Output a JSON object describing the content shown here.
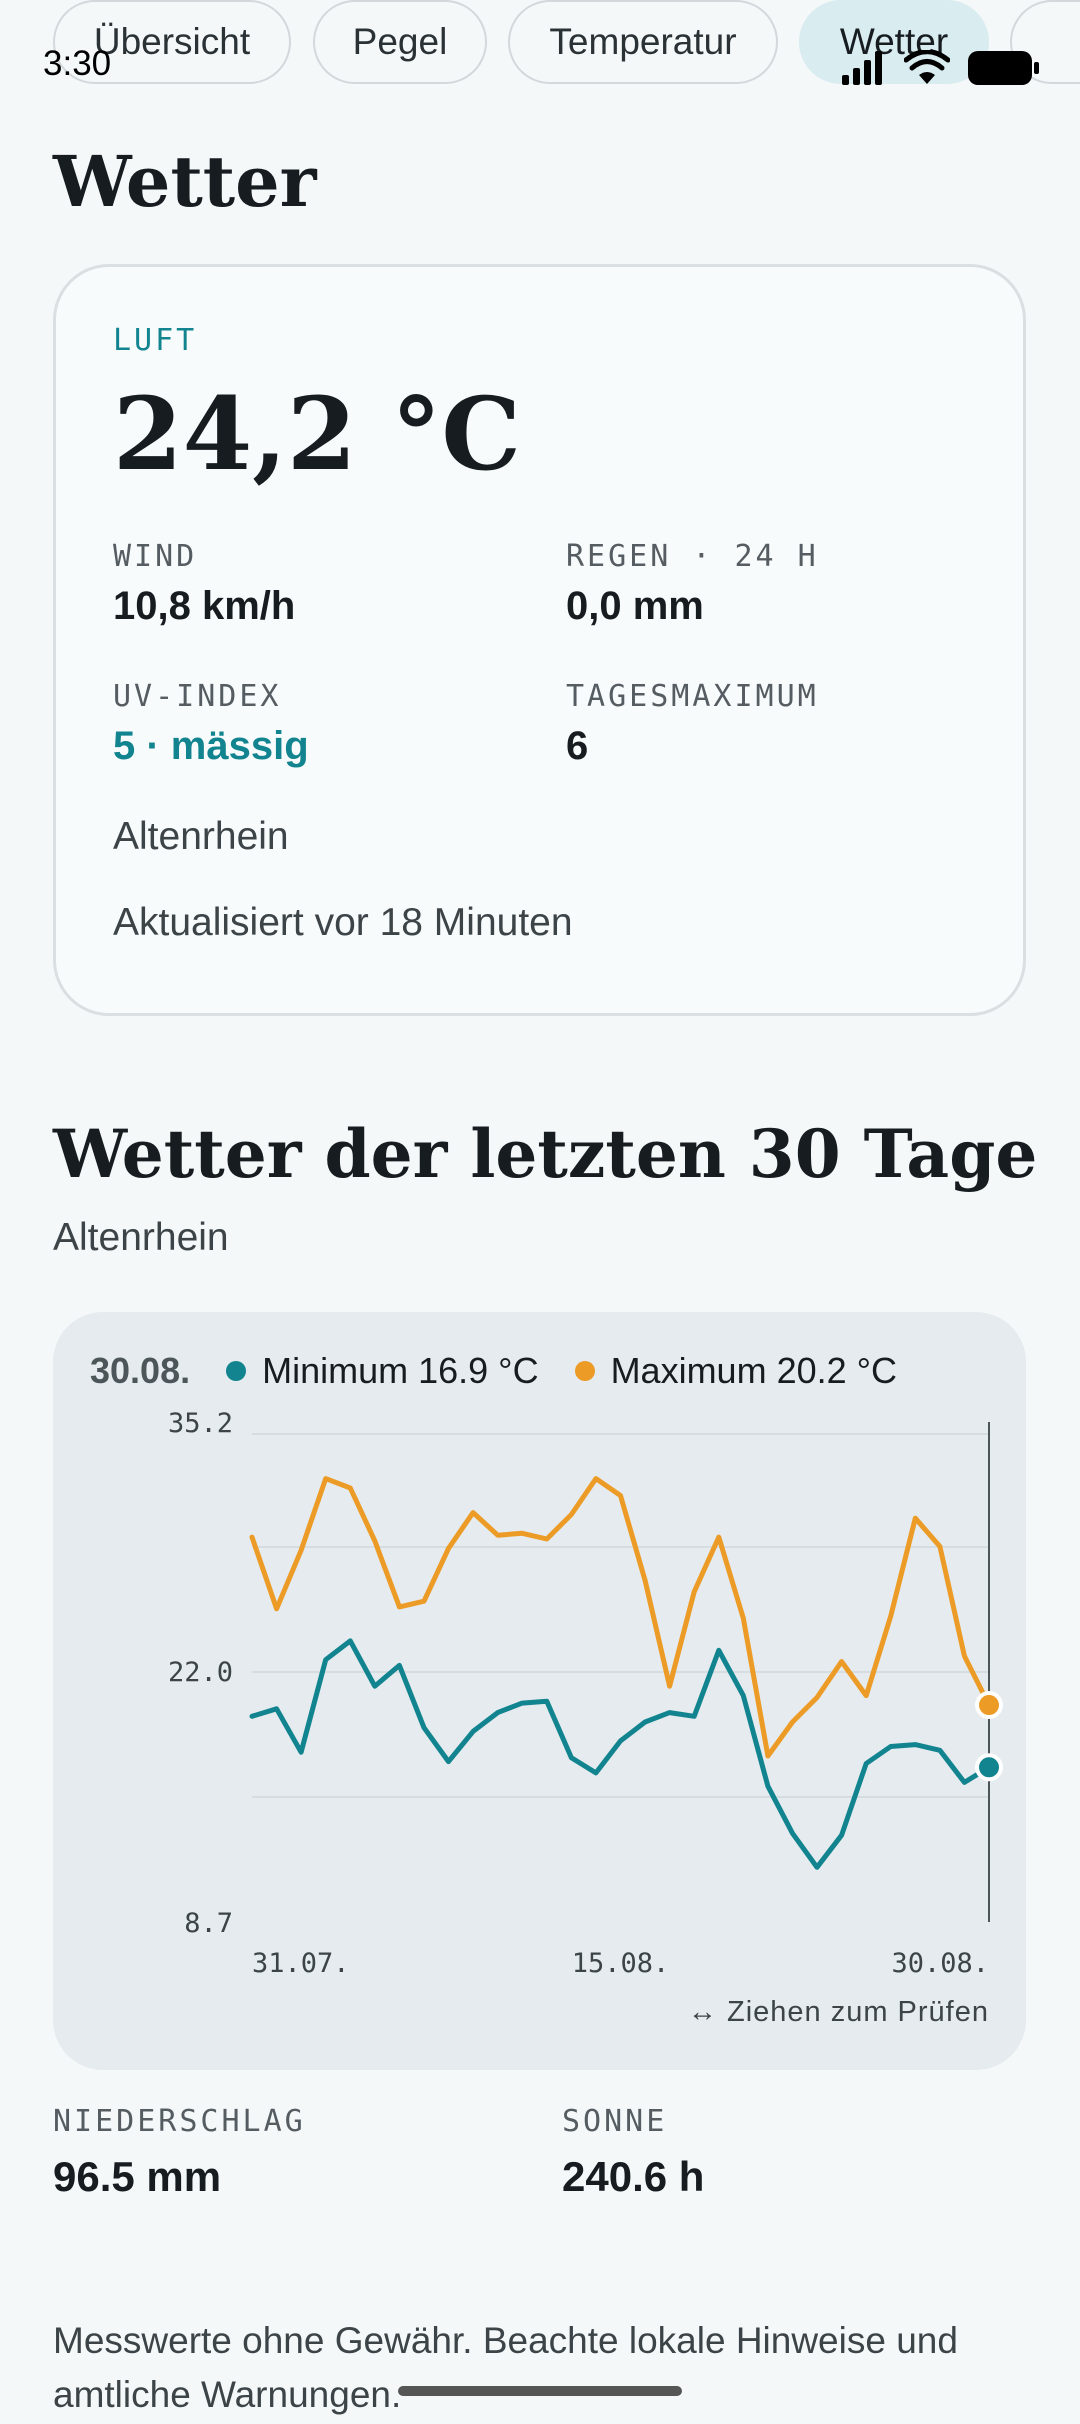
{
  "status": {
    "time": "3:30"
  },
  "tabs": [
    {
      "label": "Übersicht",
      "active": false
    },
    {
      "label": "Pegel",
      "active": false
    },
    {
      "label": "Temperatur",
      "active": false
    },
    {
      "label": "Wetter",
      "active": true
    }
  ],
  "page": {
    "title": "Wetter"
  },
  "current": {
    "air_label": "LUFT",
    "air_temp": "24,2 °C",
    "wind_label": "WIND",
    "wind_value": "10,8 km/h",
    "rain_label": "REGEN · 24 H",
    "rain_value": "0,0 mm",
    "uv_label": "UV-INDEX",
    "uv_value": "5 · mässig",
    "daymax_label": "TAGESMAXIMUM",
    "daymax_value": "6",
    "location": "Altenrhein",
    "updated": "Aktualisiert vor 18 Minuten"
  },
  "history": {
    "title": "Wetter der letzten 30 Tage",
    "location": "Altenrhein",
    "selected_date": "30.08.",
    "legend_min": "Minimum 16.9 °C",
    "legend_max": "Maximum 20.2 °C",
    "drag_hint": "↔ Ziehen zum Prüfen"
  },
  "colors": {
    "min": "#11848f",
    "max": "#ec9b26",
    "accent": "#11848f"
  },
  "chart_data": {
    "type": "line",
    "x_labels": [
      "31.07.",
      "15.08.",
      "30.08."
    ],
    "y_ticks": [
      "35.2",
      "22.0",
      "8.7"
    ],
    "ylim": [
      8.7,
      35.2
    ],
    "grid": true,
    "selected_index": 30,
    "series": [
      {
        "name": "Minimum",
        "values": [
          19.6,
          20.0,
          17.7,
          22.6,
          23.6,
          21.2,
          22.3,
          19.0,
          17.2,
          18.8,
          19.8,
          20.3,
          20.4,
          17.4,
          16.6,
          18.3,
          19.3,
          19.8,
          19.6,
          23.1,
          20.7,
          15.9,
          13.4,
          11.6,
          13.3,
          17.1,
          18.0,
          18.1,
          17.8,
          16.1,
          16.9
        ]
      },
      {
        "name": "Maximum",
        "values": [
          29.1,
          25.3,
          28.4,
          32.2,
          31.7,
          28.9,
          25.4,
          25.7,
          28.5,
          30.4,
          29.2,
          29.3,
          29.0,
          30.3,
          32.2,
          31.3,
          26.8,
          21.2,
          26.2,
          29.1,
          24.8,
          17.5,
          19.3,
          20.6,
          22.5,
          20.7,
          24.9,
          30.1,
          28.6,
          22.8,
          20.2
        ]
      }
    ]
  },
  "totals": {
    "precip_label": "NIEDERSCHLAG",
    "precip_value": "96.5 mm",
    "sun_label": "SONNE",
    "sun_value": "240.6 h"
  },
  "footer": {
    "disclaimer": "Messwerte ohne Gewähr. Beachte lokale Hinweise und amtliche Warnungen."
  }
}
